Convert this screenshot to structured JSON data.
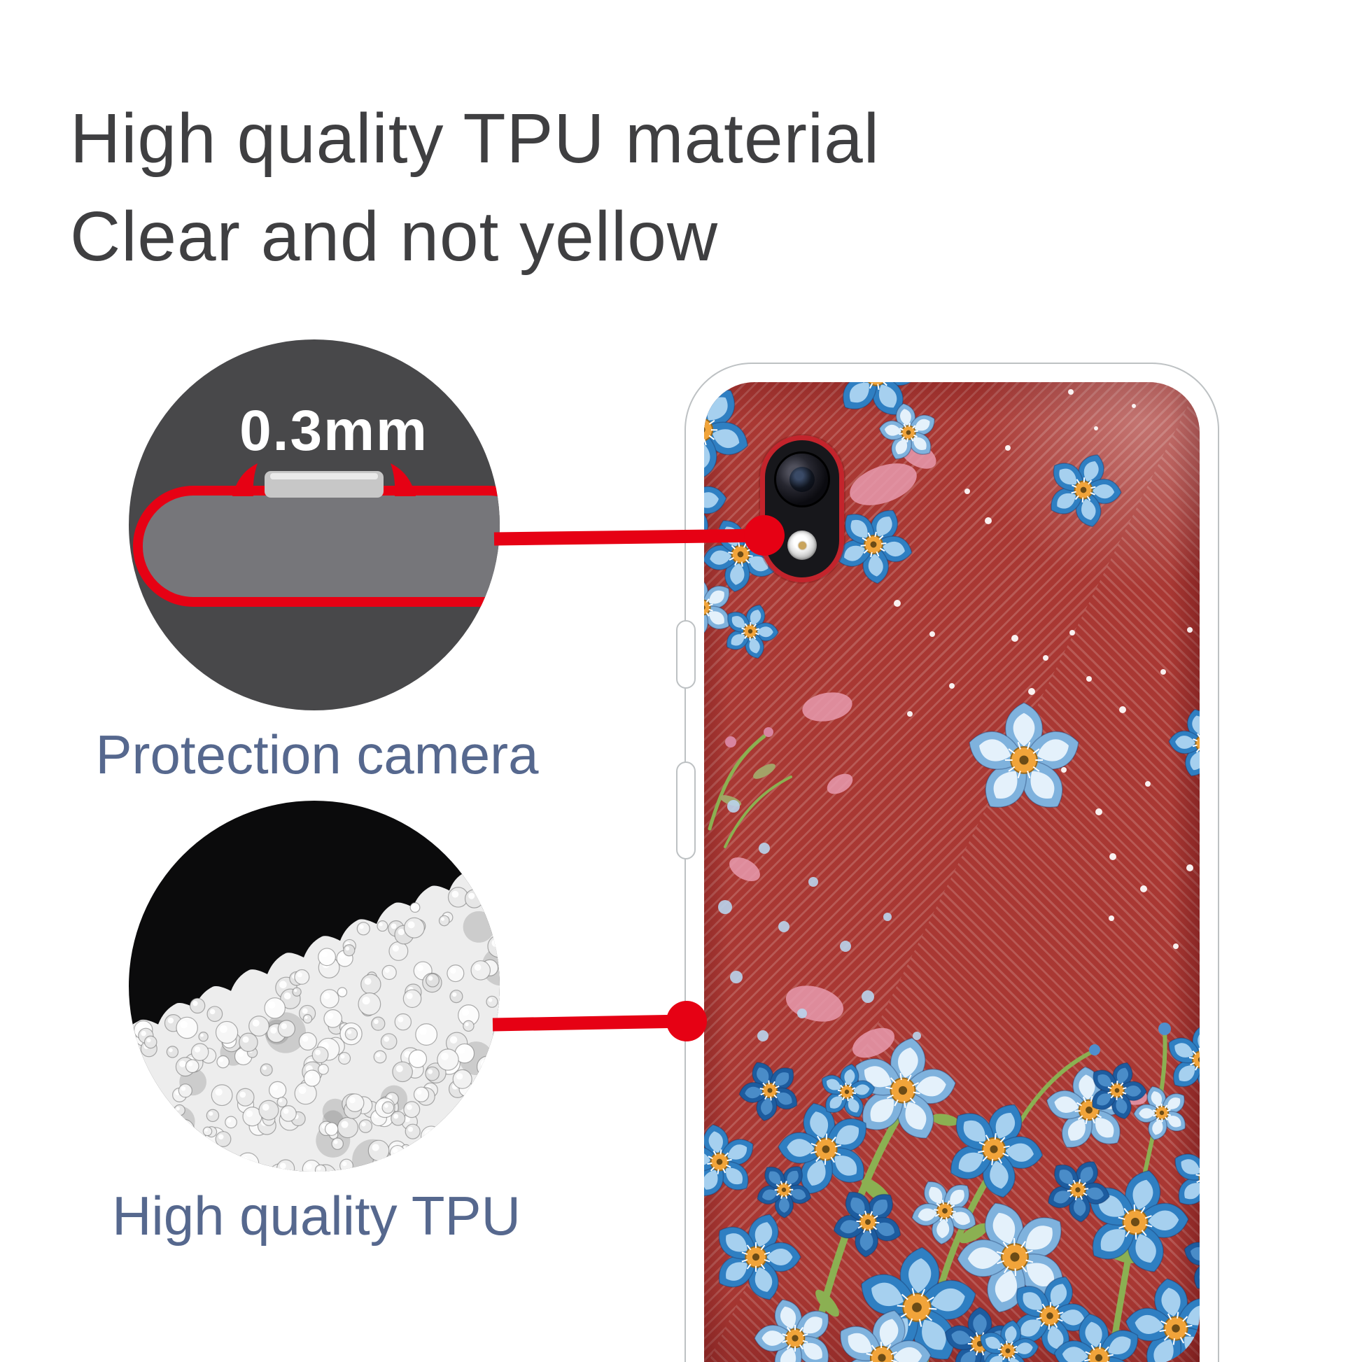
{
  "heading": {
    "line1": "High quality TPU material",
    "line2": "Clear and not yellow"
  },
  "callouts": {
    "camera_protection": {
      "badge": "0.3mm",
      "label": "Protection camera"
    },
    "material": {
      "label": "High quality TPU"
    }
  },
  "product": {
    "description": "Clear TPU phone case with blue flower pattern shown on a red textured phone",
    "camera": "single rear camera lens with flash"
  },
  "colors": {
    "accent_red": "#e60114",
    "heading_text": "#3f3f41",
    "label_text": "#56688e",
    "callout_circle_bg": "#48484a",
    "granule_circle_bg": "#0b0b0c",
    "diagram_body_gray": "#76767a",
    "diagram_bump_gray": "#c7c7c7",
    "phone_red": "#a93833",
    "case_rim": "#ffffff",
    "rim_outline": "#bdc1c3",
    "flower_blue": "#2f7fc2",
    "flower_light_blue": "#a6d0ef",
    "flower_deep_blue": "#1d5c9f",
    "flower_center_orange": "#f1a43a",
    "leaf_green": "#8bb052",
    "camera_ring_red": "#c3242c"
  }
}
